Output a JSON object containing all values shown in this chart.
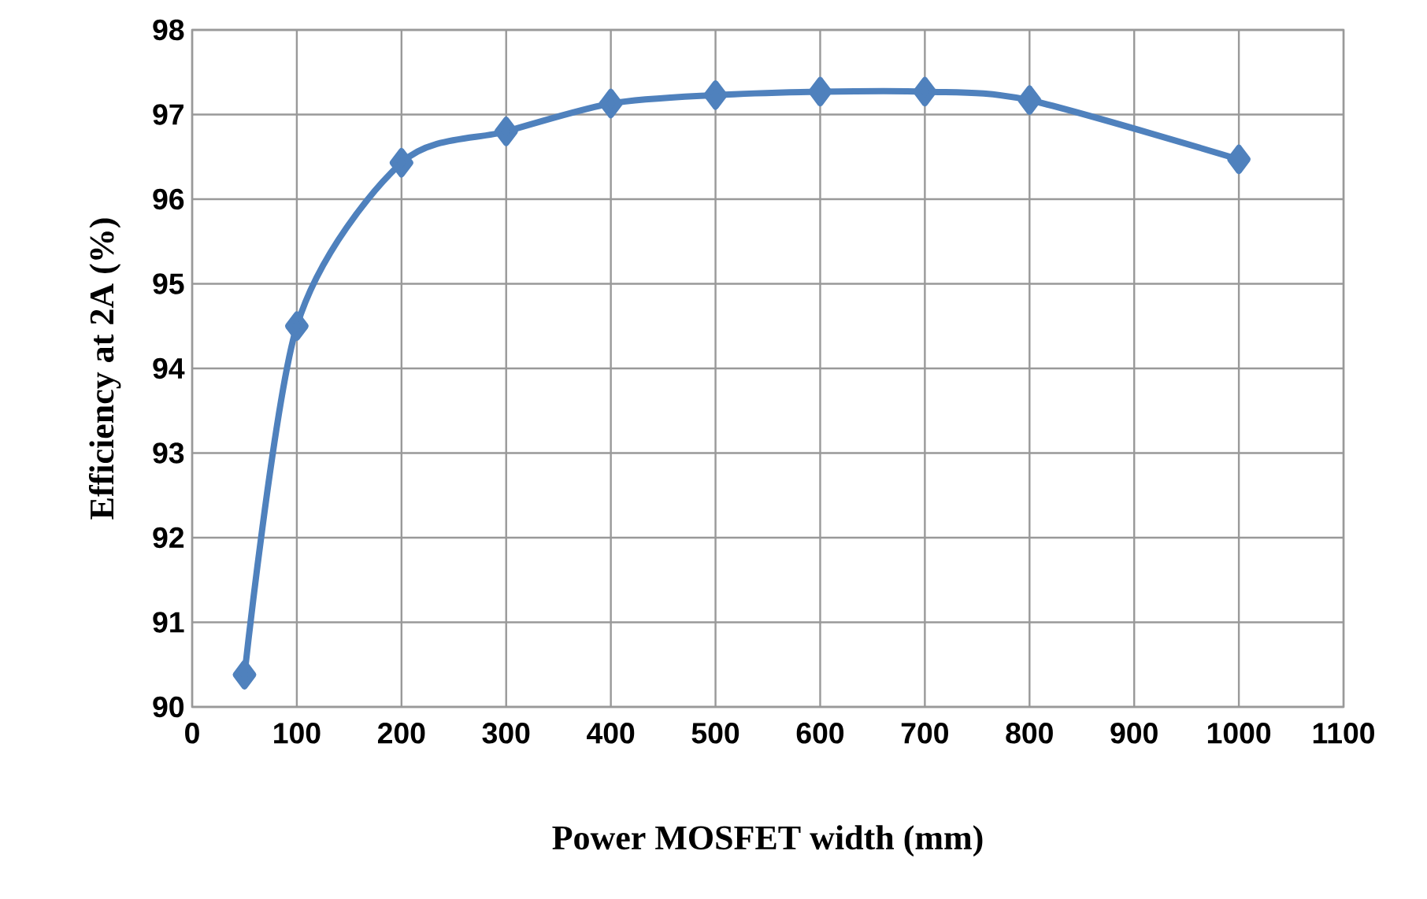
{
  "chart_data": {
    "type": "line",
    "xlabel": "Power MOSFET width (mm)",
    "ylabel": "Efficiency at 2A (%)",
    "x": [
      50,
      100,
      200,
      300,
      400,
      500,
      600,
      700,
      800,
      1000
    ],
    "series": [
      {
        "color": "#4f81bd",
        "values": [
          90.38,
          94.5,
          96.43,
          96.8,
          97.13,
          97.23,
          97.27,
          97.27,
          97.17,
          96.47
        ]
      }
    ],
    "xlim": [
      0,
      1100
    ],
    "xticks": [
      0,
      100,
      200,
      300,
      400,
      500,
      600,
      700,
      800,
      900,
      1000,
      1100
    ],
    "ylim": [
      90,
      98
    ],
    "yticks": [
      90,
      91,
      92,
      93,
      94,
      95,
      96,
      97,
      98
    ],
    "grid": true,
    "marker": "diamond",
    "line_style": "solid"
  }
}
